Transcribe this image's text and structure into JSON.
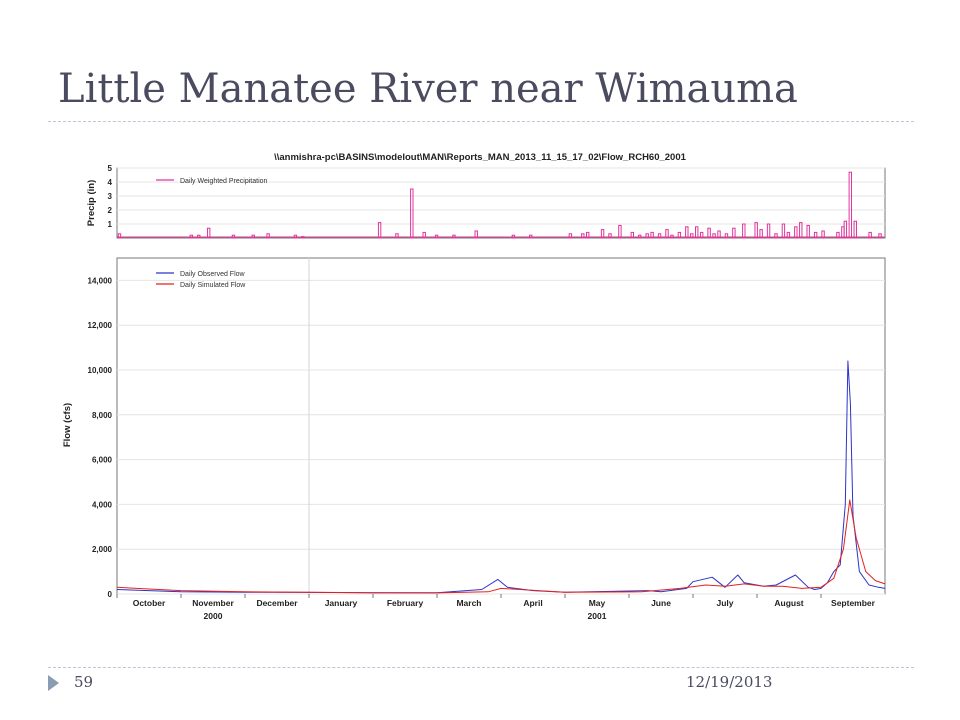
{
  "slide": {
    "title": "Little Manatee River near Wimauma",
    "page_number": "59",
    "date": "12/19/2013"
  },
  "colors": {
    "precip": "#e0349a",
    "observed": "#2b35c8",
    "simulated": "#e42121",
    "title_text": "#4a4b5f",
    "accent": "#8a9cb4"
  },
  "chart_data": [
    {
      "type": "bar",
      "title": "\\\\anmishra-pc\\BASINS\\modelout\\MAN\\Reports_MAN_2013_11_15_17_02\\Flow_RCH60_2001",
      "ylabel": "Precip (in)",
      "ylim": [
        0,
        5
      ],
      "yticks": [
        1,
        2,
        3,
        4,
        5
      ],
      "x_unit": "month index (0 = start of October 2000)",
      "legend": [
        "Daily Weighted Precipitation"
      ],
      "legend_position": "top-left",
      "series": [
        {
          "name": "Daily Weighted Precipitation",
          "x": [
            0.1,
            3.0,
            3.3,
            3.7,
            4.7,
            5.5,
            6.1,
            7.2,
            7.5,
            10.6,
            11.3,
            11.9,
            12.4,
            12.9,
            13.6,
            14.5,
            16.0,
            16.7,
            18.3,
            18.8,
            19.0,
            19.6,
            19.9,
            20.3,
            20.8,
            21.1,
            21.4,
            21.6,
            21.9,
            22.2,
            22.4,
            22.7,
            23.0,
            23.2,
            23.4,
            23.6,
            23.9,
            24.1,
            24.3,
            24.6,
            24.9,
            25.3,
            25.8,
            26.0,
            26.3,
            26.6,
            26.9,
            27.1,
            27.4,
            27.6,
            27.9,
            28.2,
            28.5,
            29.1,
            29.3,
            29.4,
            29.6,
            29.8,
            30.4,
            30.8
          ],
          "values": [
            0.3,
            0.2,
            0.2,
            0.7,
            0.2,
            0.2,
            0.3,
            0.2,
            0.1,
            1.1,
            0.3,
            3.5,
            0.4,
            0.2,
            0.2,
            0.5,
            0.2,
            0.2,
            0.3,
            0.3,
            0.4,
            0.6,
            0.3,
            0.9,
            0.4,
            0.2,
            0.3,
            0.4,
            0.3,
            0.6,
            0.2,
            0.4,
            0.8,
            0.3,
            0.8,
            0.4,
            0.7,
            0.3,
            0.5,
            0.3,
            0.7,
            1.0,
            1.1,
            0.6,
            1.0,
            0.3,
            1.0,
            0.4,
            0.8,
            1.1,
            0.9,
            0.4,
            0.5,
            0.4,
            0.8,
            1.2,
            4.7,
            1.2,
            0.4,
            0.3
          ]
        }
      ]
    },
    {
      "type": "line",
      "ylabel": "Flow (cfs)",
      "ylim": [
        0,
        15000
      ],
      "yticks": [
        0,
        2000,
        4000,
        6000,
        8000,
        10000,
        12000,
        14000
      ],
      "ytick_labels": [
        "0",
        "2,000",
        "4,000",
        "6,000",
        "8,000",
        "10,000",
        "12,000",
        "14,000"
      ],
      "x_unit": "month index (0 = start of October 2000)",
      "months": [
        "October",
        "November",
        "December",
        "January",
        "February",
        "March",
        "April",
        "May",
        "June",
        "July",
        "August",
        "September"
      ],
      "years": [
        {
          "label": "2000",
          "month": 1
        },
        {
          "label": "2001",
          "month": 7
        }
      ],
      "year_boundary_month": 3,
      "legend": [
        "Daily Observed Flow",
        "Daily Simulated Flow"
      ],
      "legend_position": "top-left",
      "grid": true,
      "series": [
        {
          "name": "Daily Observed Flow",
          "x": [
            0,
            1,
            2,
            3,
            4,
            5,
            5.7,
            5.95,
            6.1,
            6.5,
            7,
            8.3,
            8.5,
            8.9,
            9.0,
            9.3,
            9.5,
            9.7,
            9.8,
            10.1,
            10.3,
            10.6,
            10.8,
            10.9,
            11.0,
            11.1,
            11.2,
            11.3,
            11.38,
            11.42,
            11.46,
            11.5,
            11.6,
            11.75,
            11.9,
            12.0
          ],
          "values": [
            200,
            100,
            80,
            70,
            60,
            60,
            200,
            650,
            300,
            150,
            80,
            150,
            100,
            250,
            550,
            750,
            300,
            850,
            500,
            350,
            400,
            850,
            300,
            200,
            250,
            500,
            1000,
            1300,
            4000,
            10400,
            8500,
            3500,
            1000,
            400,
            300,
            250
          ]
        },
        {
          "name": "Daily Simulated Flow",
          "x": [
            0,
            1,
            2,
            3,
            4,
            5,
            5.8,
            6.0,
            6.3,
            7,
            8.2,
            8.8,
            9.2,
            9.5,
            9.8,
            10.1,
            10.4,
            10.7,
            11.0,
            11.2,
            11.35,
            11.45,
            11.55,
            11.7,
            11.85,
            12.0
          ],
          "values": [
            300,
            150,
            100,
            80,
            60,
            50,
            100,
            250,
            200,
            80,
            100,
            250,
            400,
            350,
            450,
            350,
            350,
            250,
            300,
            700,
            2000,
            4200,
            2500,
            1000,
            600,
            450
          ]
        }
      ]
    }
  ]
}
